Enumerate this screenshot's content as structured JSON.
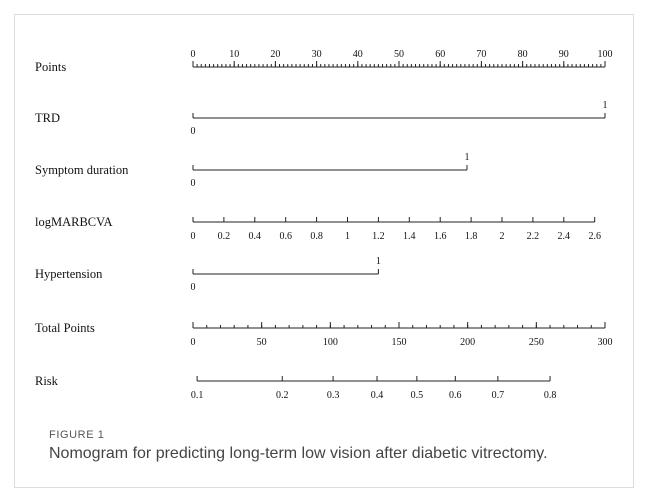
{
  "chart_data": {
    "type": "nomogram",
    "title": "",
    "rows": [
      {
        "label": "Points",
        "kind": "points",
        "range": [
          0,
          100
        ],
        "major_ticks": [
          0,
          10,
          20,
          30,
          40,
          50,
          60,
          70,
          80,
          90,
          100
        ],
        "minor_step": 1
      },
      {
        "label": "TRD",
        "kind": "categorical",
        "levels": [
          {
            "label": "0",
            "points": 0
          },
          {
            "label": "1",
            "points": 100
          }
        ]
      },
      {
        "label": "Symptom duration",
        "kind": "categorical",
        "levels": [
          {
            "label": "0",
            "points": 0
          },
          {
            "label": "1",
            "points": 66.5
          }
        ]
      },
      {
        "label": "logMARBCVA",
        "kind": "continuous",
        "ticks": [
          0,
          0.2,
          0.4,
          0.6,
          0.8,
          1,
          1.2,
          1.4,
          1.6,
          1.8,
          2,
          2.2,
          2.4,
          2.6
        ],
        "tick_labels": [
          "0",
          "0.2",
          "0.4",
          "0.6",
          "0.8",
          "1",
          "1.2",
          "1.4",
          "1.6",
          "1.8",
          "2",
          "2.2",
          "2.4",
          "2.6"
        ],
        "points_at_min": 0,
        "points_per_unit": 37.5
      },
      {
        "label": "Hypertension",
        "kind": "categorical",
        "levels": [
          {
            "label": "0",
            "points": 0
          },
          {
            "label": "1",
            "points": 45
          }
        ]
      },
      {
        "label": "Total Points",
        "kind": "total",
        "range": [
          0,
          300
        ],
        "major_ticks": [
          0,
          50,
          100,
          150,
          200,
          250,
          300
        ],
        "minor_step": 10
      },
      {
        "label": "Risk",
        "kind": "risk",
        "ticks": [
          0.1,
          0.2,
          0.3,
          0.4,
          0.5,
          0.6,
          0.7,
          0.8
        ],
        "tick_labels": [
          "0.1",
          "0.2",
          "0.3",
          "0.4",
          "0.5",
          "0.6",
          "0.7",
          "0.8"
        ],
        "total_points_at_ticks": [
          3,
          65,
          102,
          134,
          163,
          191,
          222,
          260
        ]
      }
    ]
  },
  "caption": {
    "figure_label": "FIGURE 1",
    "text": "Nomogram for predicting long-term low vision after diabetic vitrectomy."
  }
}
